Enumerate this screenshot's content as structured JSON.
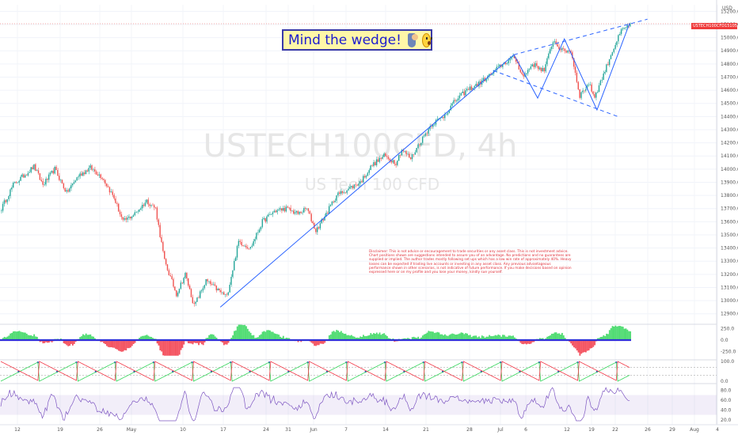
{
  "banner": {
    "text": "Mind the wedge!",
    "emoji_1": "person-shrugging-icon",
    "emoji_2": "astonished-face-icon",
    "border_color": "#3a3aa8",
    "fill_color": "#fff7a8",
    "text_color": "#1c1ccf"
  },
  "watermark": {
    "symbol": "USTECH100CFD, 4h",
    "name": "US Tech 100 CFD"
  },
  "price_label": {
    "symbol": "USTECH100CFD",
    "value": "15105.6"
  },
  "currency": "USD",
  "disclaimer": "Disclaimer: This is not advice or encouragement to trade securities or any asset class. This is not investment advice. Chart positions shown are suggestions intended to assure you of an advantage. No predictions and no guarantees are supplied or implied. The author trades mostly following set ups which has a low win rate of approximately 40%. Heavy losses can be expected if trading live accounts or investing in any asset class. Any previous advantageous performance shown in other scenarios, is not indicative of future performance. If you make decisions based on opinion expressed here or on my profile and you lose your money, kindly sue yourself.",
  "colors": {
    "up": "#26a69a",
    "down": "#ef5350",
    "trend": "#2962ff",
    "rsi": "#7e57c2",
    "osc_up": "#33d65a",
    "osc_down": "#f23645"
  },
  "chart_data": {
    "type": "candlestick",
    "timeframe": "4h",
    "y_axis_ticks": [
      12900,
      13000,
      13100,
      13200,
      13300,
      13400,
      13500,
      13600,
      13700,
      13800,
      13900,
      14000,
      14100,
      14200,
      14300,
      14400,
      14500,
      14600,
      14700,
      14800,
      14900,
      15000,
      15100,
      15200
    ],
    "ylim": [
      12850,
      15250
    ],
    "x_axis_labels": [
      "12",
      "19",
      "26",
      "May",
      "10",
      "17",
      "24",
      "31",
      "Jun",
      "7",
      "14",
      "21",
      "28",
      "Jul",
      "6",
      "12",
      "19",
      "22",
      "26",
      "29",
      "Aug",
      "4"
    ],
    "last_price": 15105.6,
    "price_path": [
      {
        "bar": 0,
        "price": 13700
      },
      {
        "bar": 8,
        "price": 13880
      },
      {
        "bar": 15,
        "price": 13950
      },
      {
        "bar": 22,
        "price": 14020
      },
      {
        "bar": 28,
        "price": 13880
      },
      {
        "bar": 36,
        "price": 14000
      },
      {
        "bar": 44,
        "price": 13820
      },
      {
        "bar": 52,
        "price": 13950
      },
      {
        "bar": 60,
        "price": 14010
      },
      {
        "bar": 68,
        "price": 13940
      },
      {
        "bar": 76,
        "price": 13780
      },
      {
        "bar": 82,
        "price": 13600
      },
      {
        "bar": 90,
        "price": 13660
      },
      {
        "bar": 98,
        "price": 13760
      },
      {
        "bar": 104,
        "price": 13700
      },
      {
        "bar": 110,
        "price": 13300
      },
      {
        "bar": 118,
        "price": 13050
      },
      {
        "bar": 124,
        "price": 13200
      },
      {
        "bar": 130,
        "price": 12960
      },
      {
        "bar": 138,
        "price": 13150
      },
      {
        "bar": 146,
        "price": 13080
      },
      {
        "bar": 152,
        "price": 13030
      },
      {
        "bar": 160,
        "price": 13450
      },
      {
        "bar": 168,
        "price": 13400
      },
      {
        "bar": 176,
        "price": 13600
      },
      {
        "bar": 184,
        "price": 13680
      },
      {
        "bar": 192,
        "price": 13700
      },
      {
        "bar": 200,
        "price": 13660
      },
      {
        "bar": 206,
        "price": 13700
      },
      {
        "bar": 212,
        "price": 13530
      },
      {
        "bar": 218,
        "price": 13640
      },
      {
        "bar": 226,
        "price": 13800
      },
      {
        "bar": 234,
        "price": 13850
      },
      {
        "bar": 242,
        "price": 13900
      },
      {
        "bar": 250,
        "price": 14030
      },
      {
        "bar": 258,
        "price": 14100
      },
      {
        "bar": 266,
        "price": 14050
      },
      {
        "bar": 270,
        "price": 14150
      },
      {
        "bar": 276,
        "price": 14080
      },
      {
        "bar": 282,
        "price": 14200
      },
      {
        "bar": 290,
        "price": 14340
      },
      {
        "bar": 298,
        "price": 14400
      },
      {
        "bar": 306,
        "price": 14520
      },
      {
        "bar": 314,
        "price": 14600
      },
      {
        "bar": 322,
        "price": 14650
      },
      {
        "bar": 330,
        "price": 14720
      },
      {
        "bar": 338,
        "price": 14800
      },
      {
        "bar": 346,
        "price": 14850
      },
      {
        "bar": 352,
        "price": 14700
      },
      {
        "bar": 358,
        "price": 14800
      },
      {
        "bar": 366,
        "price": 14750
      },
      {
        "bar": 372,
        "price": 14980
      },
      {
        "bar": 378,
        "price": 14900
      },
      {
        "bar": 384,
        "price": 14900
      },
      {
        "bar": 390,
        "price": 14560
      },
      {
        "bar": 396,
        "price": 14650
      },
      {
        "bar": 400,
        "price": 14550
      },
      {
        "bar": 406,
        "price": 14720
      },
      {
        "bar": 412,
        "price": 14900
      },
      {
        "bar": 418,
        "price": 15050
      },
      {
        "bar": 424,
        "price": 15105
      }
    ],
    "total_bars": 425,
    "annotations": [
      {
        "kind": "trendline",
        "style": "solid",
        "points": [
          {
            "bar": 148,
            "price": 12950
          },
          {
            "bar": 346,
            "price": 14870
          }
        ]
      },
      {
        "kind": "trendline",
        "style": "dashed",
        "points": [
          {
            "bar": 346,
            "price": 14870
          },
          {
            "bar": 436,
            "price": 15140
          }
        ]
      },
      {
        "kind": "trendline",
        "style": "dashed",
        "points": [
          {
            "bar": 332,
            "price": 14750
          },
          {
            "bar": 416,
            "price": 14400
          }
        ]
      },
      {
        "kind": "polyline",
        "style": "solid",
        "points": [
          {
            "bar": 346,
            "price": 14870
          },
          {
            "bar": 362,
            "price": 14540
          },
          {
            "bar": 380,
            "price": 14990
          },
          {
            "bar": 402,
            "price": 14450
          },
          {
            "bar": 424,
            "price": 15110
          }
        ]
      }
    ],
    "panels": [
      {
        "name": "momentum_oscillator",
        "ticks": [
          250.0,
          0.0,
          -250.0
        ],
        "ylim": [
          -350,
          350
        ]
      },
      {
        "name": "oscillator_2",
        "ticks": [
          100.0,
          0.0
        ],
        "ylim": [
          -5,
          105
        ]
      },
      {
        "name": "rsi",
        "ticks": [
          80.0,
          60.0,
          40.0,
          20.0
        ],
        "ylim": [
          10,
          90
        ],
        "band": [
          30,
          70
        ]
      }
    ]
  }
}
